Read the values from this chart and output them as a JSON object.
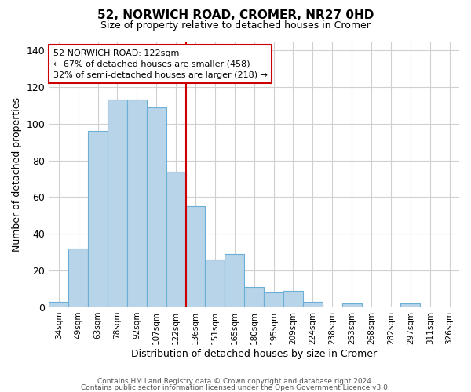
{
  "title1": "52, NORWICH ROAD, CROMER, NR27 0HD",
  "title2": "Size of property relative to detached houses in Cromer",
  "xlabel": "Distribution of detached houses by size in Cromer",
  "ylabel": "Number of detached properties",
  "bar_labels": [
    "34sqm",
    "49sqm",
    "63sqm",
    "78sqm",
    "92sqm",
    "107sqm",
    "122sqm",
    "136sqm",
    "151sqm",
    "165sqm",
    "180sqm",
    "195sqm",
    "209sqm",
    "224sqm",
    "238sqm",
    "253sqm",
    "268sqm",
    "282sqm",
    "297sqm",
    "311sqm",
    "326sqm"
  ],
  "bar_values": [
    3,
    32,
    96,
    113,
    113,
    109,
    74,
    55,
    26,
    29,
    11,
    8,
    9,
    3,
    0,
    2,
    0,
    0,
    2,
    0,
    0
  ],
  "bar_color": "#b8d4e8",
  "bar_edge_color": "#6baed6",
  "vline_color": "#cc0000",
  "annotation_line1": "52 NORWICH ROAD: 122sqm",
  "annotation_line2": "← 67% of detached houses are smaller (458)",
  "annotation_line3": "32% of semi-detached houses are larger (218) →",
  "ylim": [
    0,
    145
  ],
  "yticks": [
    0,
    20,
    40,
    60,
    80,
    100,
    120,
    140
  ],
  "footer1": "Contains HM Land Registry data © Crown copyright and database right 2024.",
  "footer2": "Contains public sector information licensed under the Open Government Licence v3.0.",
  "bg_color": "#ffffff",
  "grid_color": "#d0d0d0"
}
